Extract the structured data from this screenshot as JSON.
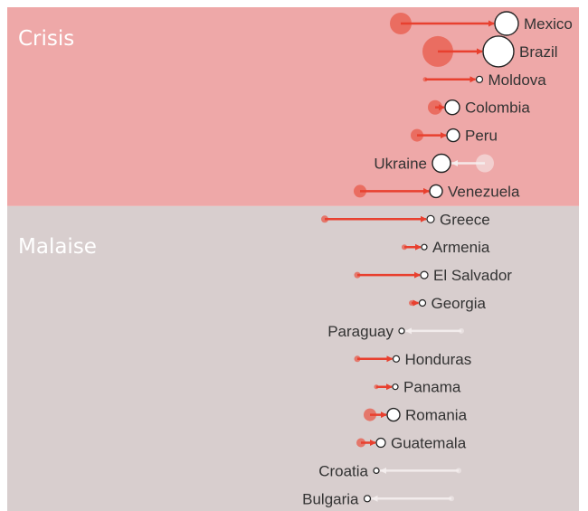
{
  "chart_data": {
    "type": "dumbbell",
    "title": "",
    "xlabel": "",
    "ylabel": "",
    "grid": false,
    "colors": {
      "crisis_band": "#eea8a8",
      "malaise_band": "#d8cece",
      "increase_arrow": "#e8402f",
      "increase_start": "#e85a4a",
      "decrease_arrow": "#f5efef",
      "end_marker_fill": "#ffffff",
      "end_marker_stroke": "#222222",
      "label_text": "#333333"
    },
    "groups": [
      {
        "label": "Crisis",
        "rows": [
          {
            "country": "Mexico",
            "start": 443,
            "end": 560,
            "size_start": 12,
            "size_end": 13
          },
          {
            "country": "Brazil",
            "start": 484,
            "end": 551,
            "size_start": 17,
            "size_end": 17
          },
          {
            "country": "Moldova",
            "start": 470,
            "end": 530,
            "size_start": 2.5,
            "size_end": 3.5
          },
          {
            "country": "Colombia",
            "start": 481,
            "end": 500,
            "size_start": 8,
            "size_end": 8
          },
          {
            "country": "Peru",
            "start": 461,
            "end": 501,
            "size_start": 7,
            "size_end": 7
          },
          {
            "country": "Ukraine",
            "start": 536,
            "end": 488,
            "size_start": 10,
            "size_end": 10
          },
          {
            "country": "Venezuela",
            "start": 398,
            "end": 482,
            "size_start": 7,
            "size_end": 7
          }
        ]
      },
      {
        "label": "Malaise",
        "rows": [
          {
            "country": "Greece",
            "start": 359,
            "end": 476,
            "size_start": 4,
            "size_end": 4
          },
          {
            "country": "Armenia",
            "start": 447,
            "end": 469,
            "size_start": 3,
            "size_end": 3
          },
          {
            "country": "El Salvador",
            "start": 395,
            "end": 469,
            "size_start": 3.5,
            "size_end": 4
          },
          {
            "country": "Georgia",
            "start": 455,
            "end": 467,
            "size_start": 3,
            "size_end": 3.5
          },
          {
            "country": "Paraguay",
            "start": 510,
            "end": 444,
            "size_start": 3,
            "size_end": 3
          },
          {
            "country": "Honduras",
            "start": 395,
            "end": 438,
            "size_start": 3.5,
            "size_end": 3.5
          },
          {
            "country": "Panama",
            "start": 416,
            "end": 437,
            "size_start": 2.5,
            "size_end": 3
          },
          {
            "country": "Romania",
            "start": 409,
            "end": 435,
            "size_start": 7,
            "size_end": 7
          },
          {
            "country": "Guatemala",
            "start": 399,
            "end": 421,
            "size_start": 5,
            "size_end": 5
          },
          {
            "country": "Croatia",
            "start": 507,
            "end": 416,
            "size_start": 3,
            "size_end": 3
          },
          {
            "country": "Bulgaria",
            "start": 499,
            "end": 406,
            "size_start": 3,
            "size_end": 3.5
          }
        ]
      }
    ]
  }
}
